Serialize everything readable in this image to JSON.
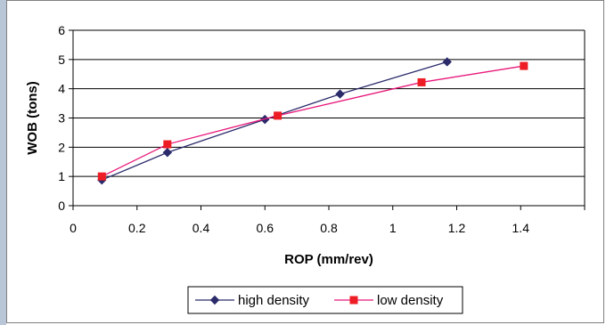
{
  "chart_data": {
    "type": "scatter",
    "xlabel": "ROP (mm/rev)",
    "ylabel": "WOB (tons)",
    "xlim": [
      0,
      1.6
    ],
    "ylim": [
      0,
      6
    ],
    "x_ticks": [
      "0",
      "0.2",
      "0.4",
      "0.6",
      "0.8",
      "1",
      "1.2",
      "1.4"
    ],
    "y_ticks": [
      "0",
      "1",
      "2",
      "3",
      "4",
      "5",
      "6"
    ],
    "grid": "horizontal major gridlines",
    "legend_position": "bottom",
    "series": [
      {
        "name": "high density",
        "color": "#2b2b6b",
        "marker": "diamond",
        "x": [
          0.09,
          0.295,
          0.6,
          0.835,
          1.17
        ],
        "y": [
          0.88,
          1.82,
          2.95,
          3.82,
          4.92
        ]
      },
      {
        "name": "low density",
        "color": "#e8177a",
        "marker_color": "#ee1c24",
        "marker": "square",
        "x": [
          0.09,
          0.295,
          0.64,
          1.09,
          1.41
        ],
        "y": [
          1.0,
          2.1,
          3.08,
          4.22,
          4.78
        ]
      }
    ]
  }
}
